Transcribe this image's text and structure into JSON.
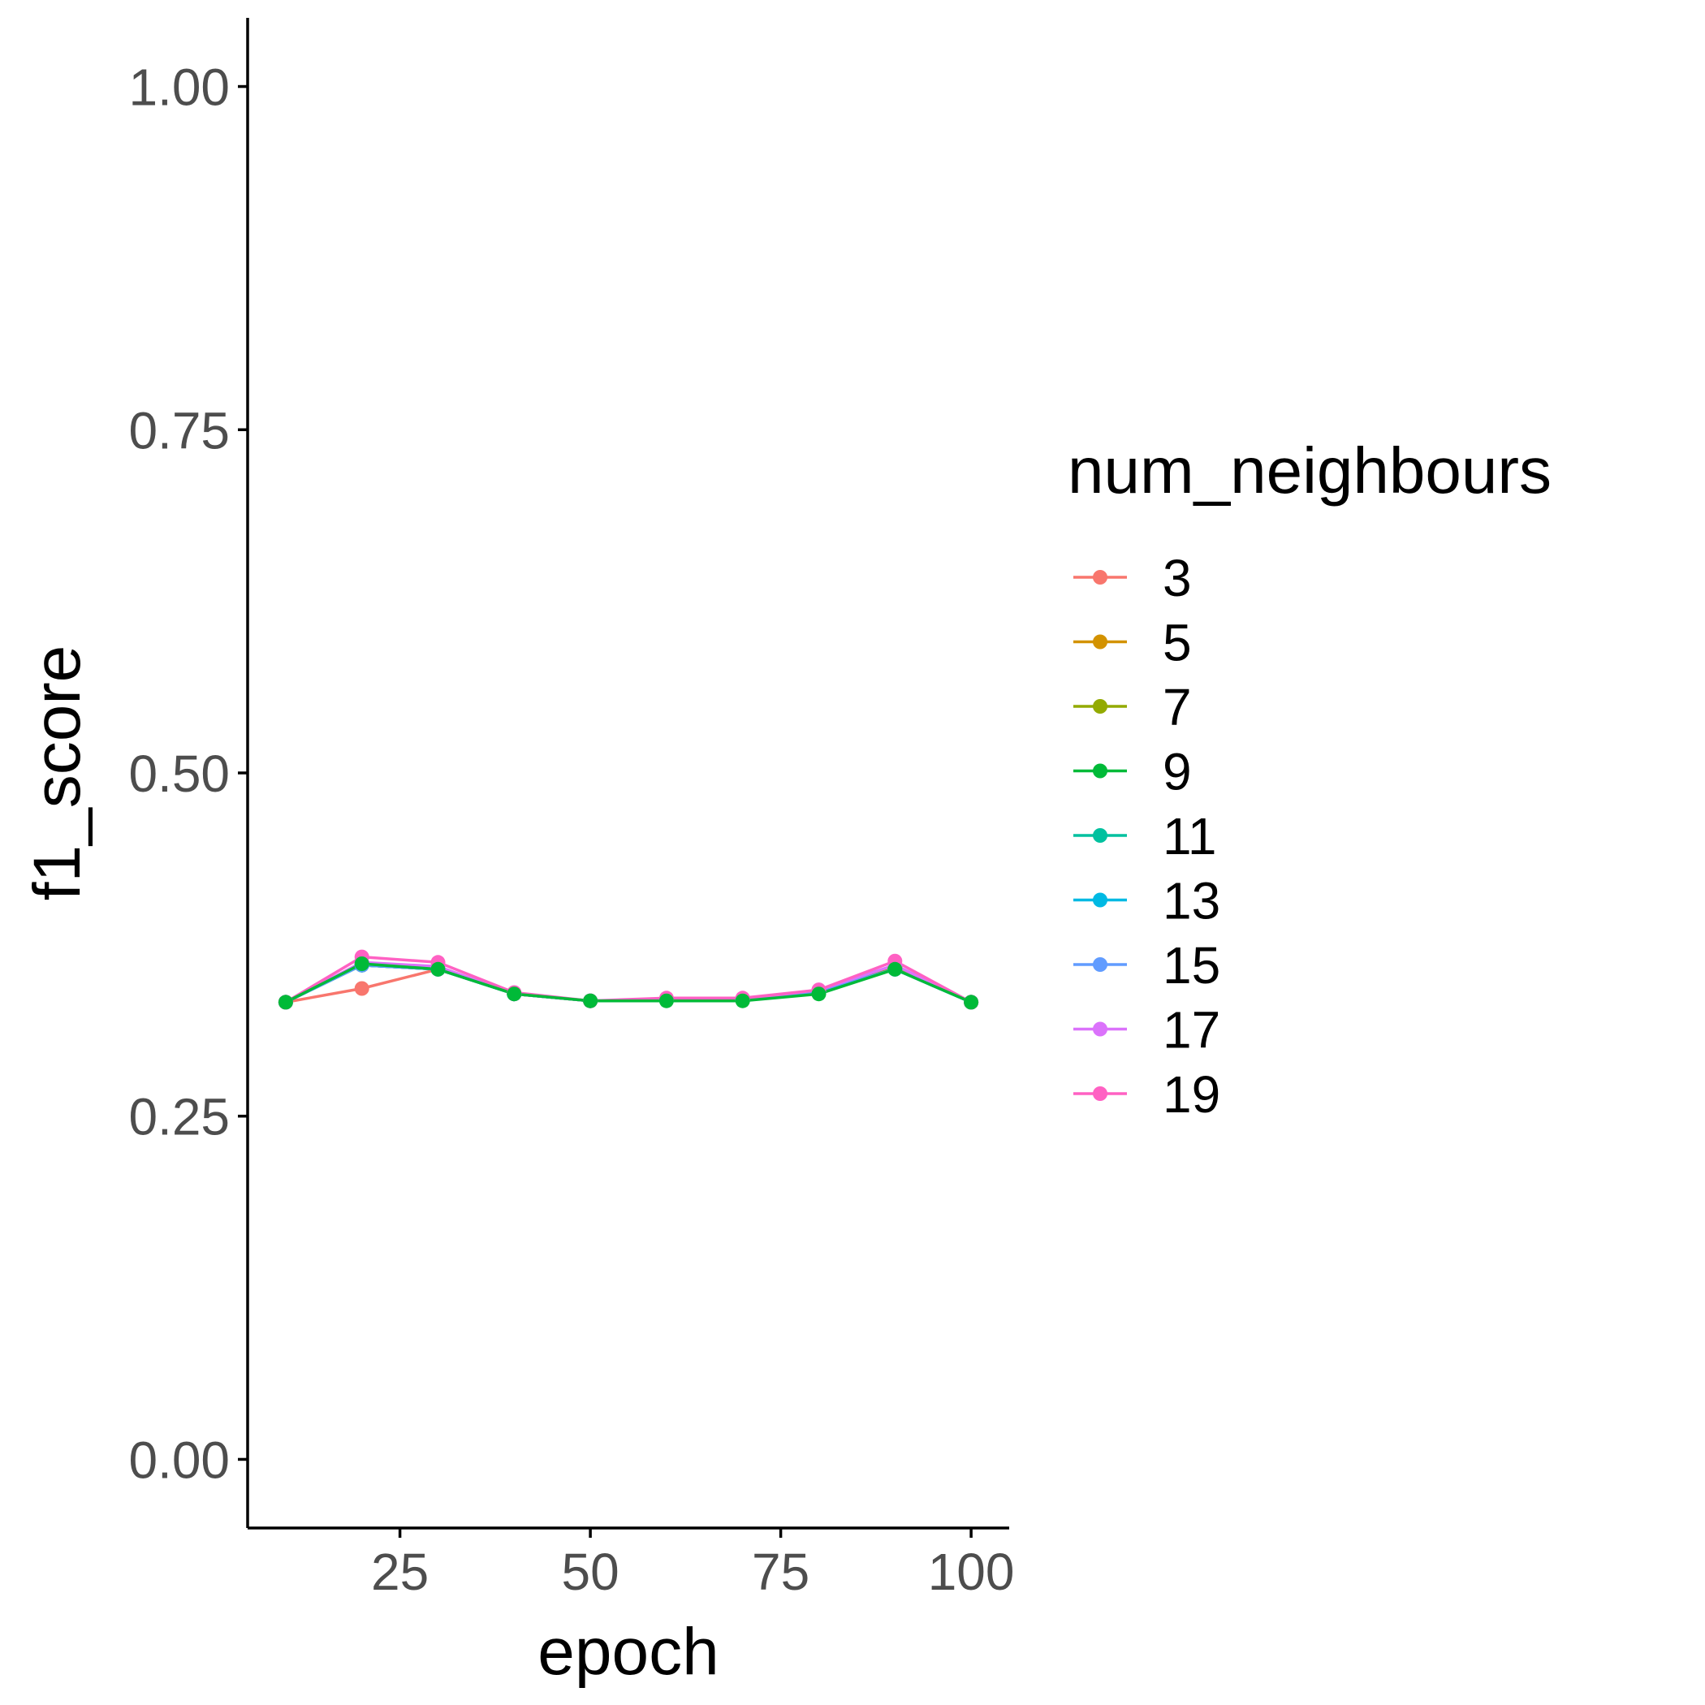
{
  "chart_data": {
    "type": "line",
    "title": "",
    "xlabel": "epoch",
    "ylabel": "f1_score",
    "xlim": [
      5,
      105
    ],
    "ylim": [
      -0.05,
      1.05
    ],
    "x_ticks": [
      25,
      50,
      75,
      100
    ],
    "x_tick_labels": [
      "25",
      "50",
      "75",
      "100"
    ],
    "y_ticks": [
      0,
      0.25,
      0.5,
      0.75,
      1.0
    ],
    "y_tick_labels": [
      "0.00",
      "0.25",
      "0.50",
      "0.75",
      "1.00"
    ],
    "grid": false,
    "legend": {
      "title": "num_neighbours",
      "position": "right"
    },
    "x": [
      10,
      20,
      30,
      40,
      50,
      60,
      70,
      80,
      90,
      100
    ],
    "series": [
      {
        "name": "3",
        "color": "#F8766D",
        "values": [
          0.333,
          0.343,
          0.357,
          0.339,
          0.334,
          0.335,
          0.335,
          0.341,
          0.358,
          0.333
        ]
      },
      {
        "name": "5",
        "color": "#D39200",
        "values": [
          0.333,
          0.36,
          0.357,
          0.339,
          0.334,
          0.335,
          0.335,
          0.341,
          0.358,
          0.333
        ]
      },
      {
        "name": "7",
        "color": "#93AA00",
        "values": [
          0.333,
          0.36,
          0.357,
          0.339,
          0.334,
          0.335,
          0.335,
          0.341,
          0.358,
          0.333
        ]
      },
      {
        "name": "9",
        "color": "#00BA38",
        "values": [
          0.333,
          0.361,
          0.357,
          0.339,
          0.334,
          0.334,
          0.334,
          0.339,
          0.357,
          0.333
        ]
      },
      {
        "name": "11",
        "color": "#00C19F",
        "values": [
          0.333,
          0.36,
          0.357,
          0.339,
          0.334,
          0.335,
          0.335,
          0.341,
          0.357,
          0.333
        ]
      },
      {
        "name": "13",
        "color": "#00B9E3",
        "values": [
          0.333,
          0.36,
          0.357,
          0.339,
          0.334,
          0.335,
          0.335,
          0.341,
          0.357,
          0.333
        ]
      },
      {
        "name": "15",
        "color": "#619CFF",
        "values": [
          0.333,
          0.36,
          0.357,
          0.339,
          0.334,
          0.335,
          0.335,
          0.341,
          0.357,
          0.333
        ]
      },
      {
        "name": "17",
        "color": "#DB72FB",
        "values": [
          0.333,
          0.362,
          0.359,
          0.339,
          0.334,
          0.335,
          0.335,
          0.342,
          0.36,
          0.333
        ]
      },
      {
        "name": "19",
        "color": "#FF61C3",
        "values": [
          0.333,
          0.366,
          0.362,
          0.34,
          0.334,
          0.336,
          0.336,
          0.342,
          0.363,
          0.333
        ]
      }
    ],
    "draw_order": [
      0,
      1,
      2,
      4,
      5,
      6,
      7,
      8,
      3
    ]
  }
}
